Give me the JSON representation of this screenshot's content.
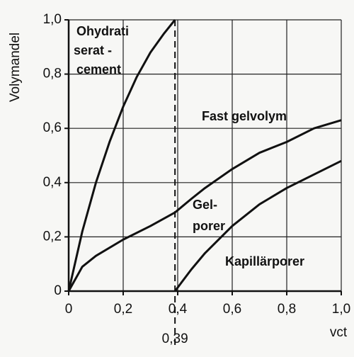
{
  "chart_data": {
    "type": "line",
    "ylabel": "Volymandel",
    "xlabel": "vct",
    "xlim": [
      0,
      1.0
    ],
    "ylim": [
      0,
      1.0
    ],
    "xticks": [
      0,
      {
        "value": 0.2,
        "label": "0,2"
      },
      {
        "value": 0.4,
        "label": "0,4"
      },
      {
        "value": 0.6,
        "label": "0,6"
      },
      {
        "value": 0.8,
        "label": "0,8"
      },
      {
        "value": 1.0,
        "label": "1,0"
      }
    ],
    "yticks": [
      0,
      {
        "value": 0.2,
        "label": "0,2"
      },
      {
        "value": 0.4,
        "label": "0,4"
      },
      {
        "value": 0.6,
        "label": "0,6"
      },
      {
        "value": 0.8,
        "label": "0,8"
      },
      {
        "value": 1.0,
        "label": "1,0"
      }
    ],
    "grid": true,
    "series": [
      {
        "color": "#111111",
        "x": [
          0,
          0.05,
          0.1,
          0.15,
          0.2,
          0.25,
          0.3,
          0.35,
          0.39
        ],
        "values": [
          0,
          0.22,
          0.4,
          0.55,
          0.68,
          0.79,
          0.88,
          0.95,
          1.0
        ]
      },
      {
        "color": "#111111",
        "x": [
          0,
          0.05,
          0.1,
          0.2,
          0.3,
          0.39,
          0.45,
          0.5,
          0.6,
          0.7,
          0.8,
          0.9,
          1.0
        ],
        "values": [
          0,
          0.09,
          0.13,
          0.19,
          0.24,
          0.29,
          0.34,
          0.38,
          0.45,
          0.51,
          0.55,
          0.6,
          0.63
        ]
      },
      {
        "color": "#111111",
        "x": [
          0.39,
          0.45,
          0.5,
          0.6,
          0.7,
          0.8,
          0.9,
          1.0
        ],
        "values": [
          0,
          0.08,
          0.14,
          0.24,
          0.32,
          0.38,
          0.43,
          0.48
        ]
      }
    ],
    "marker": {
      "value": 0.39,
      "label": "0,39"
    },
    "annotations": [
      [
        "Ohydrati",
        "serat -",
        "cement"
      ],
      [
        "Fast gelvolym"
      ],
      [
        "Gel-",
        "porer"
      ],
      [
        "Kapillärporer"
      ]
    ]
  }
}
